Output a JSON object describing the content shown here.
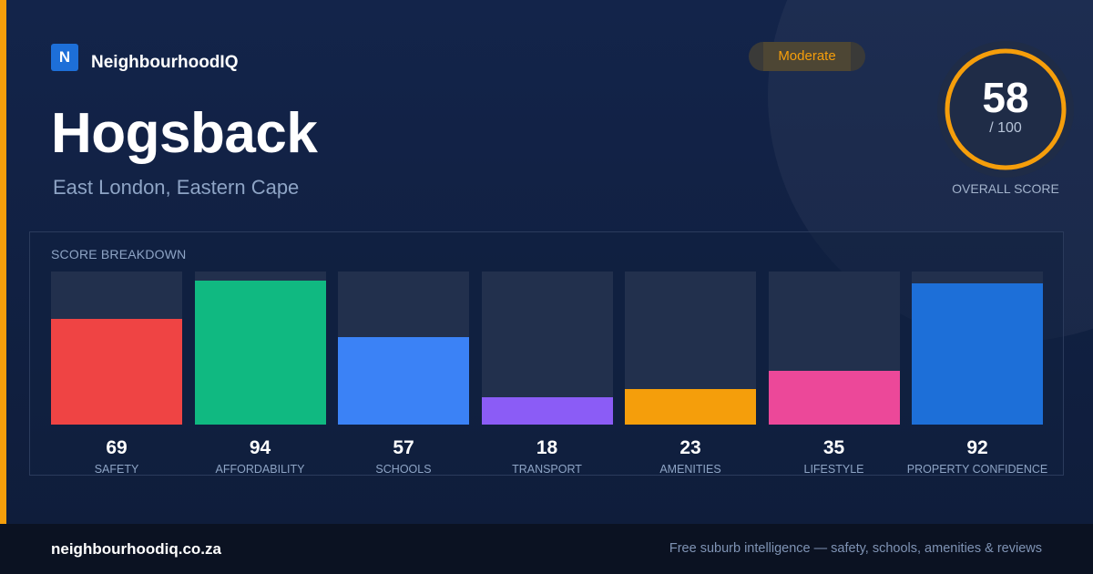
{
  "brand": {
    "logo_letter": "N",
    "name": "NeighbourhoodIQ",
    "logo_color": "#1d6fd8"
  },
  "suburb": {
    "name": "Hogsback",
    "location": "East London, Eastern Cape"
  },
  "rating_badge": {
    "label": "Moderate",
    "color": "#f59e0b"
  },
  "overall_score": {
    "value": "58",
    "max_label": "/ 100",
    "caption": "OVERALL SCORE",
    "fraction": 0.58,
    "ring_color": "#f59e0b"
  },
  "breakdown": {
    "heading": "SCORE BREAKDOWN",
    "max": 100,
    "items": [
      {
        "label": "SAFETY",
        "value": 69,
        "color": "#ef4444"
      },
      {
        "label": "AFFORDABILITY",
        "value": 94,
        "color": "#10b981"
      },
      {
        "label": "SCHOOLS",
        "value": 57,
        "color": "#3b82f6"
      },
      {
        "label": "TRANSPORT",
        "value": 18,
        "color": "#8b5cf6"
      },
      {
        "label": "AMENITIES",
        "value": 23,
        "color": "#f59e0b"
      },
      {
        "label": "LIFESTYLE",
        "value": 35,
        "color": "#ec4899"
      },
      {
        "label": "PROPERTY CONFIDENCE",
        "value": 92,
        "color": "#1d6fd8"
      }
    ]
  },
  "footer": {
    "domain": "neighbourhoodiq.co.za",
    "tagline": "Free suburb intelligence — safety, schools, amenities & reviews"
  },
  "colors": {
    "accent": "#f59e0b",
    "background": "#13244a"
  }
}
